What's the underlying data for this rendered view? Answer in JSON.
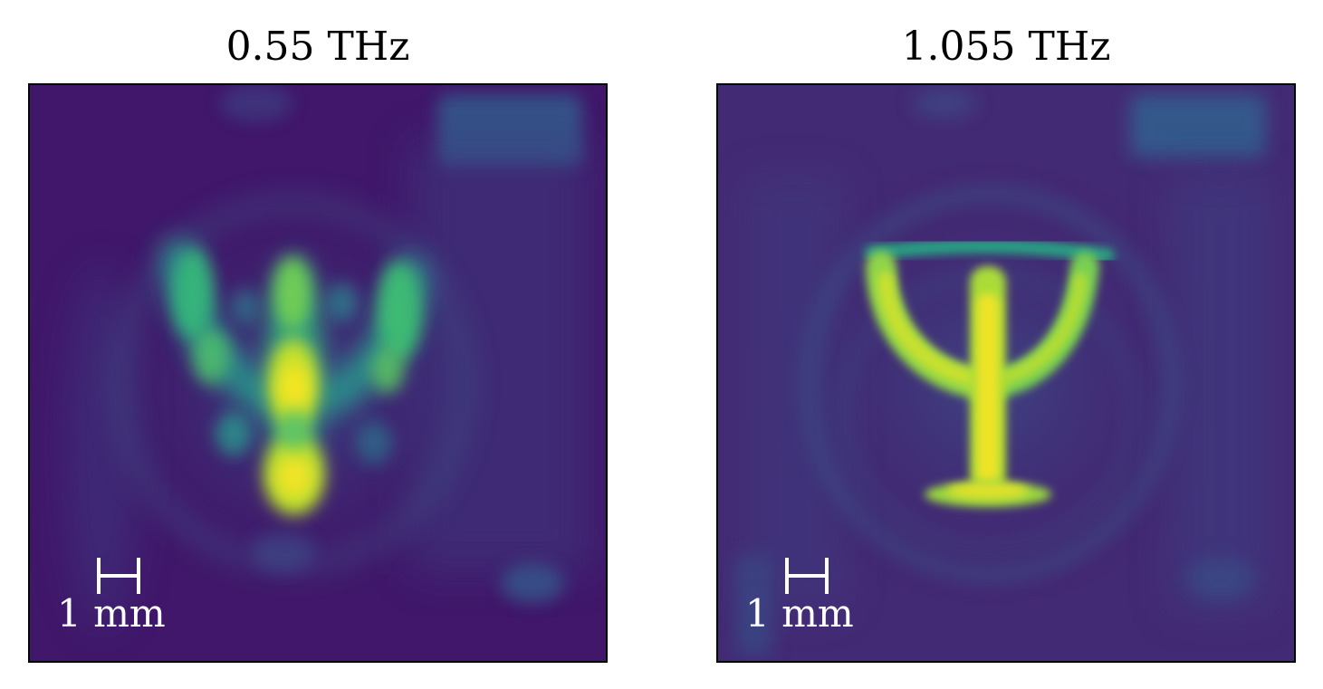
{
  "panels": [
    {
      "title": "0.55 THz",
      "scale_bar_label": "1 mm"
    },
    {
      "title": "1.055 THz",
      "scale_bar_label": "1 mm"
    }
  ],
  "colormap": {
    "background": "#3f1a66",
    "low": "#452a78",
    "mid": "#2f6d8e",
    "high": "#26b183",
    "peak": "#f6e524"
  }
}
